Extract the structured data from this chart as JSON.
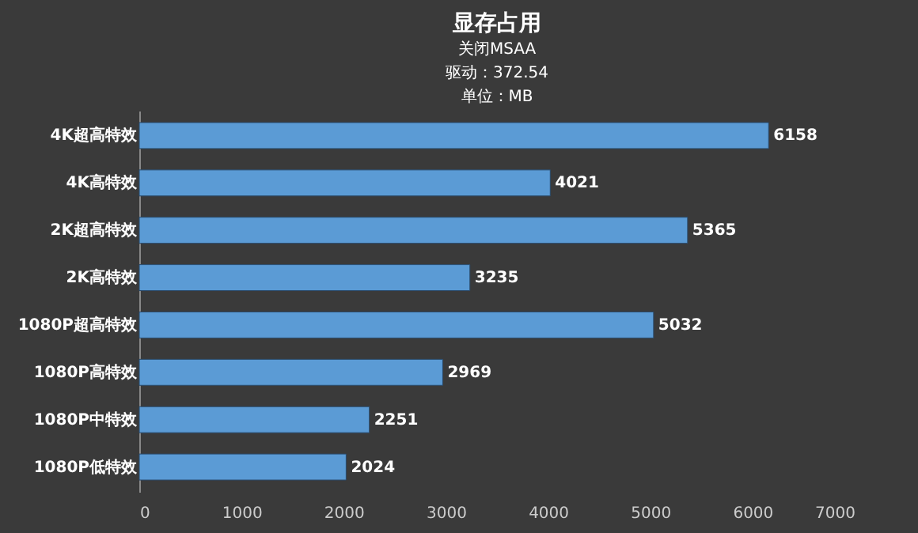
{
  "chart_data": {
    "type": "bar",
    "orientation": "horizontal",
    "title": "显存占用",
    "subtitle": "关闭MSAA",
    "annotations": [
      "驱动：372.54",
      "单位：MB"
    ],
    "categories": [
      "4K超高特效",
      "4K高特效",
      "2K超高特效",
      "2K高特效",
      "1080P超高特效",
      "1080P高特效",
      "1080P中特效",
      "1080P低特效"
    ],
    "values": [
      6158,
      4021,
      5365,
      3235,
      5032,
      2969,
      2251,
      2024
    ],
    "color": "#5b9bd5",
    "data_labels": true,
    "grid": false,
    "xlim": [
      0,
      7000
    ],
    "xticks": [
      0,
      1000,
      2000,
      3000,
      4000,
      5000,
      6000,
      7000
    ]
  }
}
